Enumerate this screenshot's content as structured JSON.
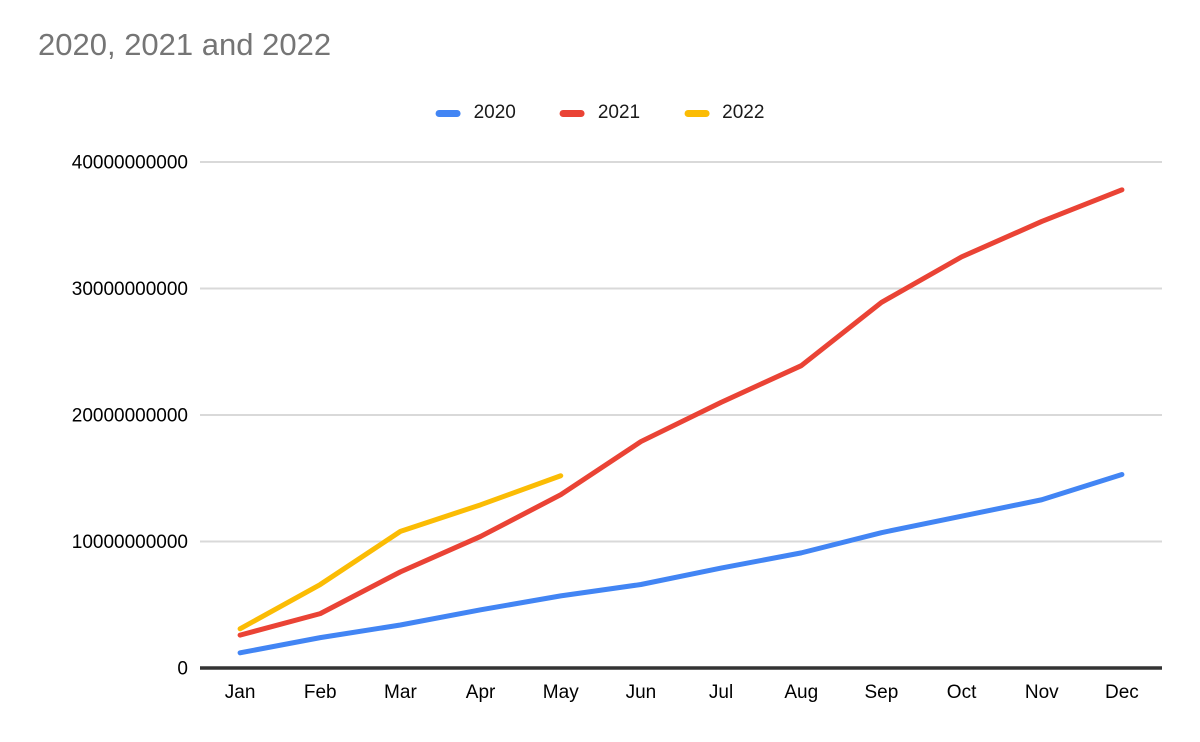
{
  "chart_data": {
    "type": "line",
    "title": "2020, 2021 and 2022",
    "categories": [
      "Jan",
      "Feb",
      "Mar",
      "Apr",
      "May",
      "Jun",
      "Jul",
      "Aug",
      "Sep",
      "Oct",
      "Nov",
      "Dec"
    ],
    "series": [
      {
        "name": "2020",
        "color": "#4285F4",
        "values": [
          1200000000,
          2400000000,
          3400000000,
          4600000000,
          5700000000,
          6600000000,
          7900000000,
          9100000000,
          10700000000,
          12000000000,
          13300000000,
          15300000000
        ]
      },
      {
        "name": "2021",
        "color": "#EA4335",
        "values": [
          2600000000,
          4300000000,
          7600000000,
          10400000000,
          13700000000,
          17900000000,
          21000000000,
          23900000000,
          28900000000,
          32500000000,
          35300000000,
          37800000000
        ]
      },
      {
        "name": "2022",
        "color": "#FBBC04",
        "values": [
          3100000000,
          6600000000,
          10800000000,
          12900000000,
          15200000000,
          null,
          null,
          null,
          null,
          null,
          null,
          null
        ]
      }
    ],
    "y_ticks": [
      0,
      10000000000,
      20000000000,
      30000000000,
      40000000000
    ],
    "ylim": [
      0,
      40000000000
    ],
    "xlabel": "",
    "ylabel": "",
    "legend_position": "top-center",
    "grid": "horizontal-only"
  },
  "colors": {
    "title_text": "#757575",
    "gridline": "#d9d9d9",
    "axis_baseline": "#333333",
    "tick_text": "#000000",
    "background": "#ffffff"
  }
}
